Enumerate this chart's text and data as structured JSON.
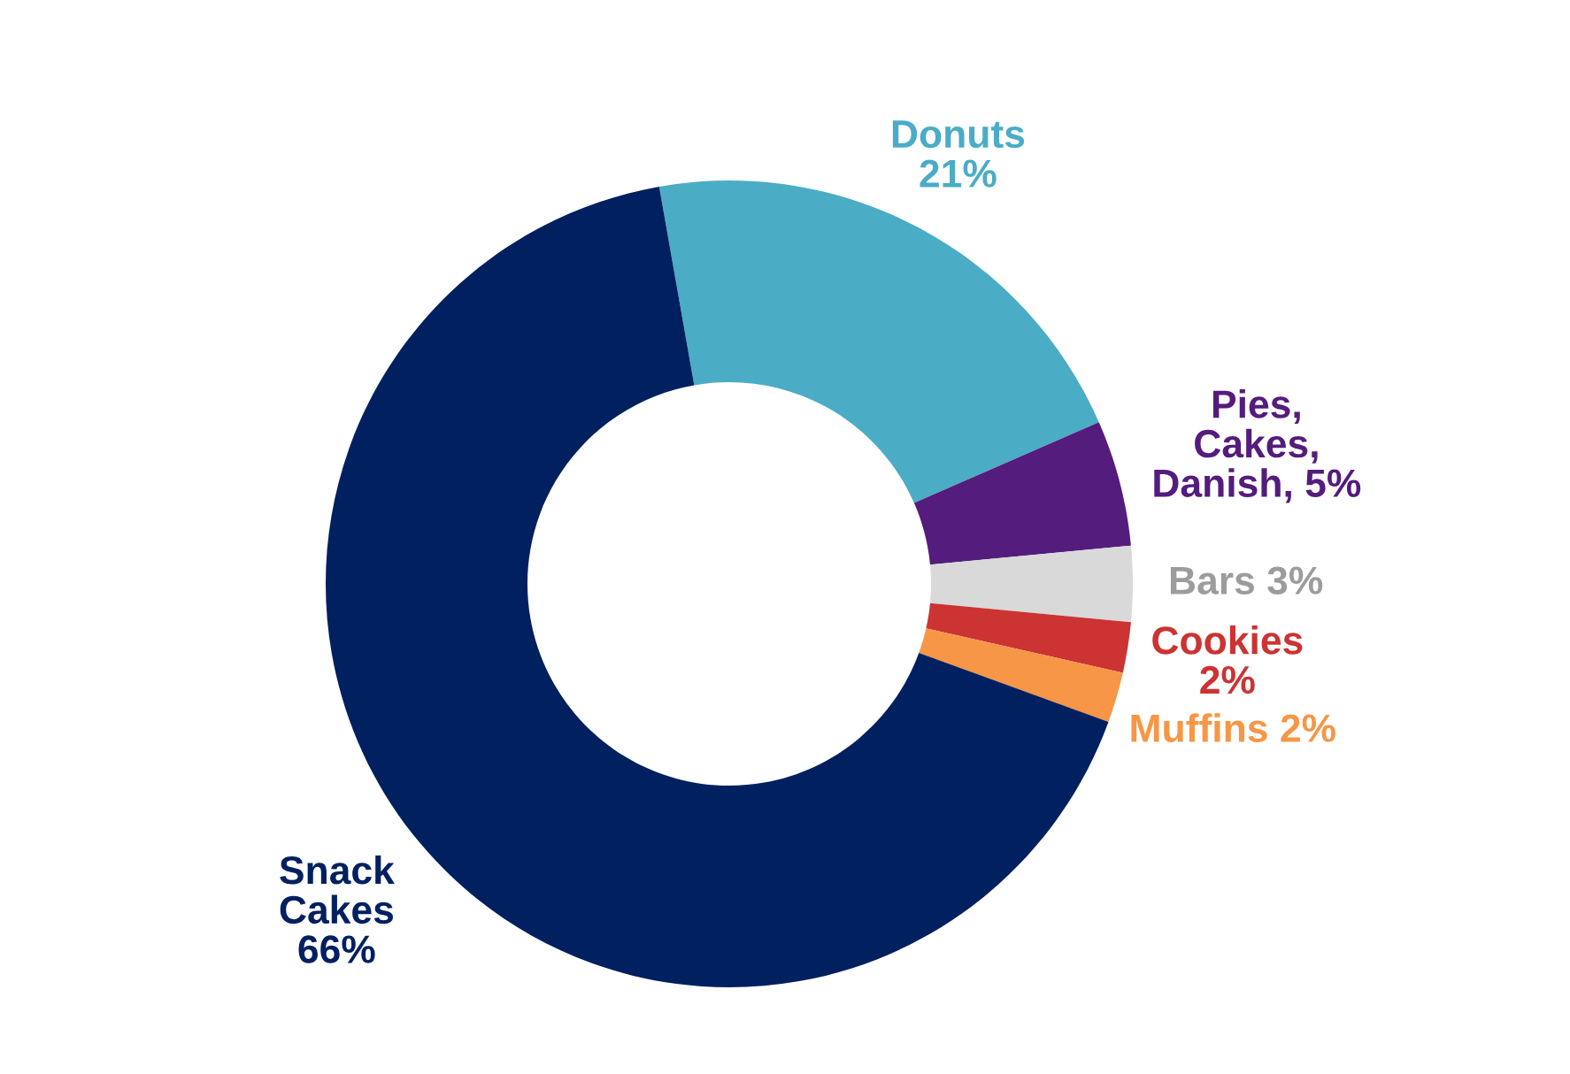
{
  "chart_data": {
    "type": "donut",
    "categories": [
      "Donuts",
      "Pies, Cakes, Danish",
      "Bars",
      "Cookies",
      "Muffins",
      "Snack Cakes"
    ],
    "values": [
      21,
      5,
      3,
      2,
      2,
      66
    ],
    "value_labels": [
      "21%",
      "5%",
      "3%",
      "2%",
      "2%",
      "66%"
    ],
    "colors": [
      "#4bacc6",
      "#541c7c",
      "#d9d9d9",
      "#cc3333",
      "#f79646",
      "#002060"
    ],
    "legend": false
  }
}
